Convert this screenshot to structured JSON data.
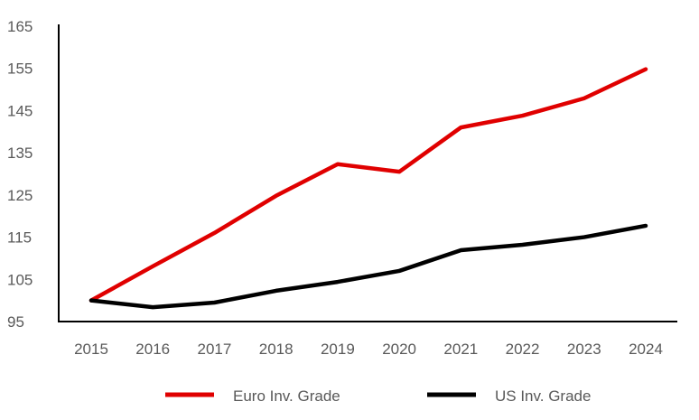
{
  "chart_data": {
    "type": "line",
    "title": "",
    "xlabel": "",
    "ylabel": "",
    "x": [
      "2015",
      "2016",
      "2017",
      "2018",
      "2019",
      "2020",
      "2021",
      "2022",
      "2023",
      "2024"
    ],
    "ylim": [
      95,
      165
    ],
    "yticks": [
      95,
      105,
      115,
      125,
      135,
      145,
      155,
      165
    ],
    "grid": false,
    "legend_position": "bottom",
    "series": [
      {
        "name": "Euro Inv. Grade",
        "color": "#e00000",
        "values": [
          100,
          108.1,
          116,
          124.8,
          132.3,
          130.5,
          141,
          143.8,
          147.9,
          154.8
        ]
      },
      {
        "name": "US Inv. Grade",
        "color": "#000000",
        "values": [
          100,
          98.4,
          99.5,
          102.3,
          104.4,
          107,
          111.9,
          113.2,
          115,
          117.7
        ]
      }
    ]
  }
}
